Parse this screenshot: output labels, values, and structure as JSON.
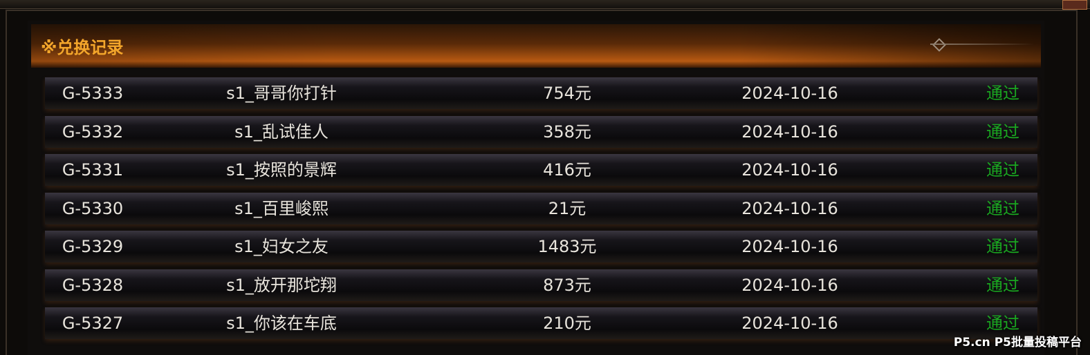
{
  "header": {
    "title": "※兑换记录"
  },
  "table": {
    "rows": [
      [
        "G-5333",
        "s1_哥哥你打针",
        "754元",
        "2024-10-16",
        "通过"
      ],
      [
        "G-5332",
        "s1_乱试佳人",
        "358元",
        "2024-10-16",
        "通过"
      ],
      [
        "G-5331",
        "s1_按照的景辉",
        "416元",
        "2024-10-16",
        "通过"
      ],
      [
        "G-5330",
        "s1_百里峻熙",
        "21元",
        "2024-10-16",
        "通过"
      ],
      [
        "G-5329",
        "s1_妇女之友",
        "1483元",
        "2024-10-16",
        "通过"
      ],
      [
        "G-5328",
        "s1_放开那坨翔",
        "873元",
        "2024-10-16",
        "通过"
      ],
      [
        "G-5327",
        "s1_你该在车底",
        "210元",
        "2024-10-16",
        "通过"
      ]
    ]
  },
  "watermark": "P5.cn P5批量投稿平台"
}
